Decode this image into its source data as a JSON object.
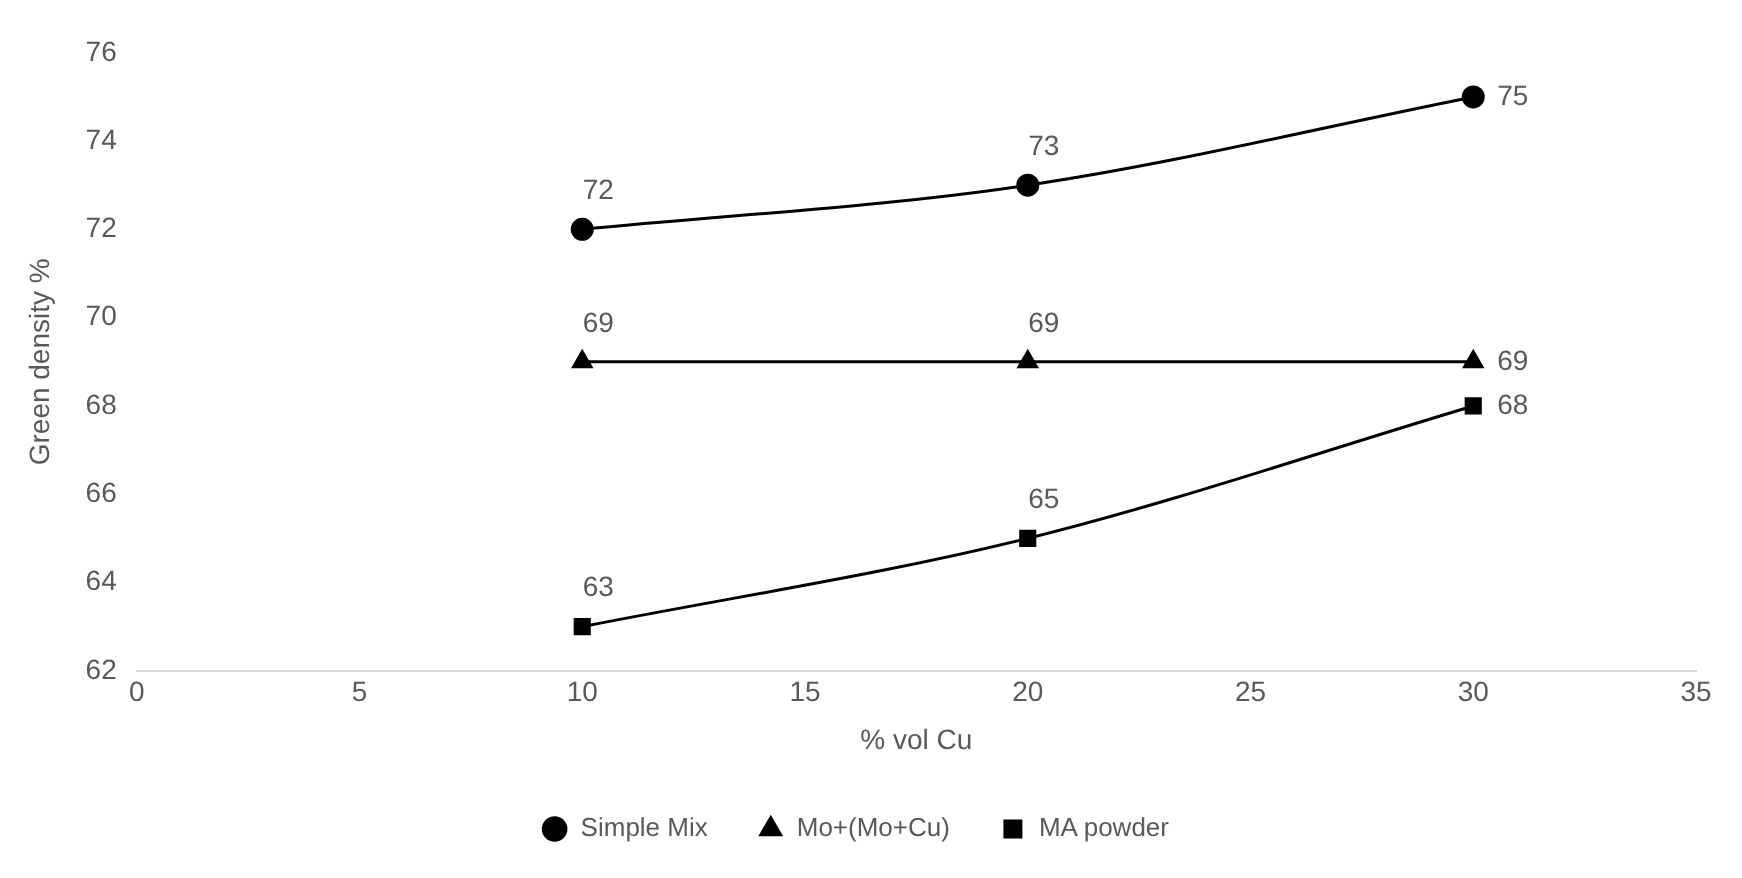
{
  "chart_data": {
    "type": "line",
    "xlabel": "% vol Cu",
    "ylabel": "Green density %",
    "x": [
      10,
      20,
      30
    ],
    "series": [
      {
        "name": "Simple Mix",
        "color": "#000000",
        "marker": "circle",
        "values": [
          72,
          73,
          75
        ]
      },
      {
        "name": "Mo+(Mo+Cu)",
        "color": "#000000",
        "marker": "triangle",
        "values": [
          69,
          69,
          69
        ]
      },
      {
        "name": "MA powder",
        "color": "#000000",
        "marker": "square",
        "values": [
          63,
          65,
          68
        ]
      }
    ],
    "xlim": [
      0,
      35
    ],
    "xticks": [
      0,
      5,
      10,
      15,
      20,
      25,
      30,
      35
    ],
    "ylim": [
      62,
      76
    ],
    "yticks": [
      62,
      64,
      66,
      68,
      70,
      72,
      74,
      76
    ],
    "grid": false,
    "legend": "bottom",
    "data_labels": true
  }
}
